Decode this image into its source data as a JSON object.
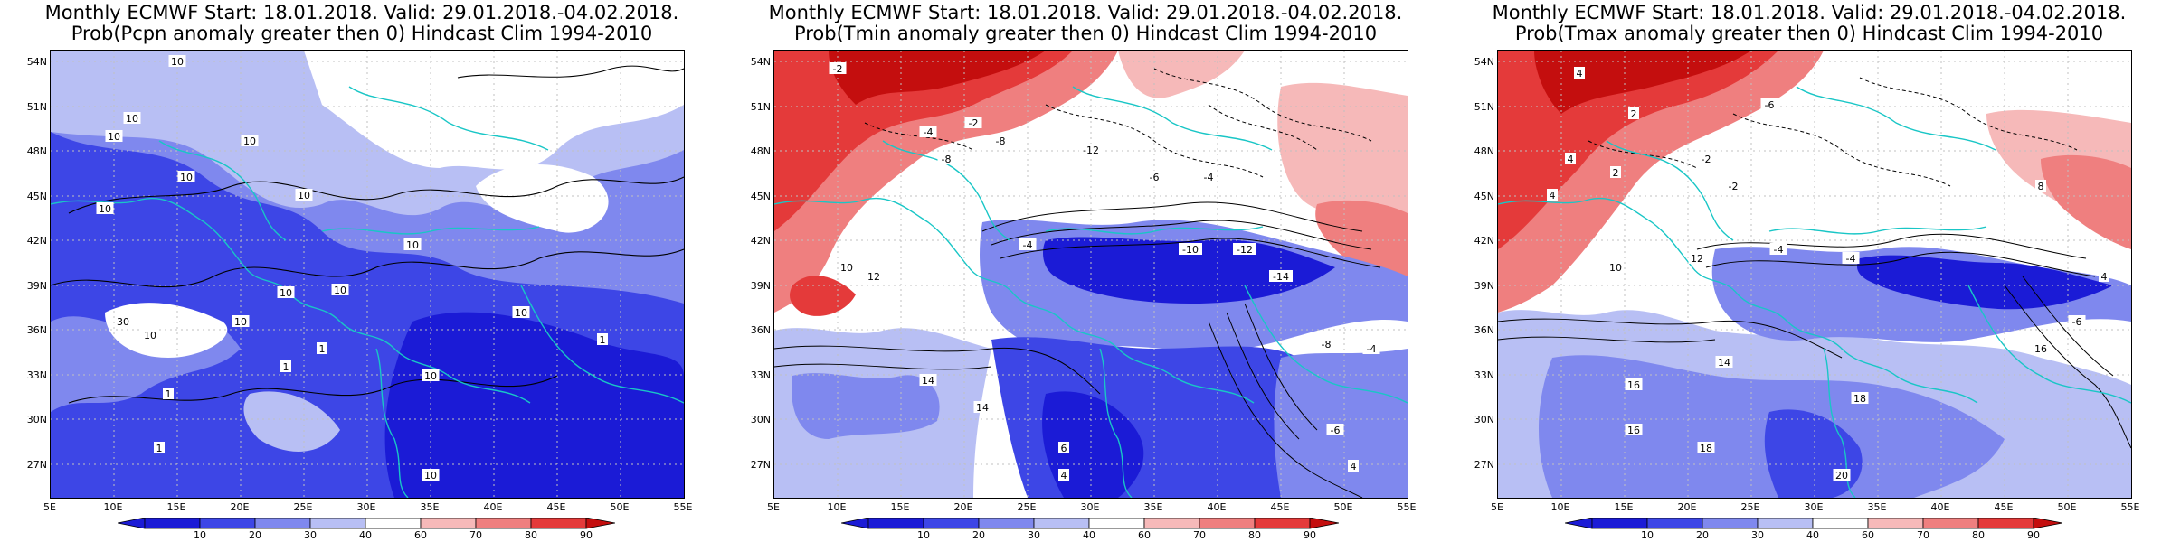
{
  "palette": {
    "c10": "#1b1bd6",
    "c20": "#3d46e6",
    "c30": "#7f88ee",
    "c40": "#b8bff4",
    "c50": "#ffffff",
    "c60": "#f6b9b9",
    "c70": "#ef7f7f",
    "c80": "#e43a3a",
    "c90": "#c40e0e",
    "coast": "#19c6c6"
  },
  "axes": {
    "lat_labels": [
      "54N",
      "51N",
      "48N",
      "45N",
      "42N",
      "39N",
      "36N",
      "33N",
      "30N",
      "27N"
    ],
    "lon_labels": [
      "5E",
      "10E",
      "15E",
      "20E",
      "25E",
      "30E",
      "35E",
      "40E",
      "45E",
      "50E",
      "55E"
    ]
  },
  "colorbar": {
    "labels": [
      "10",
      "20",
      "30",
      "40",
      "60",
      "70",
      "80",
      "90"
    ]
  },
  "panels": [
    {
      "title_line1": "Monthly ECMWF Start: 18.01.2018. Valid: 29.01.2018.-04.02.2018.",
      "title_line2": "Prob(Pcpn anomaly greater then 0) Hindcast Clim 1994-2010",
      "contour_labels": [
        "10",
        "10",
        "10",
        "10",
        "10",
        "10",
        "10",
        "10",
        "10",
        "10",
        "10",
        "30",
        "10",
        "10",
        "1",
        "1",
        "10",
        "1",
        "1",
        "1",
        "10"
      ]
    },
    {
      "title_line1": "Monthly ECMWF Start: 18.01.2018. Valid: 29.01.2018.-04.02.2018.",
      "title_line2": "Prob(Tmin anomaly greater then 0) Hindcast Clim 1994-2010",
      "contour_labels": [
        "-2",
        "-4",
        "-2",
        "-8",
        "-8",
        "-12",
        "-6",
        "-4",
        "12",
        "10",
        "-4",
        "-10",
        "-12",
        "-14",
        "14",
        "14",
        "-8",
        "-4",
        "6",
        "4",
        "-6",
        "4"
      ]
    },
    {
      "title_line1": "Monthly ECMWF Start: 18.01.2018. Valid: 29.01.2018.-04.02.2018.",
      "title_line2": "Prob(Tmax anomaly greater then 0) Hindcast Clim 1994-2010",
      "contour_labels": [
        "4",
        "2",
        "-6",
        "4",
        "2",
        "-2",
        "-2",
        "4",
        "-4",
        "12",
        "10",
        "-4",
        "8",
        "16",
        "14",
        "16",
        "18",
        "16",
        "20",
        "18",
        "-6",
        "4"
      ]
    }
  ]
}
